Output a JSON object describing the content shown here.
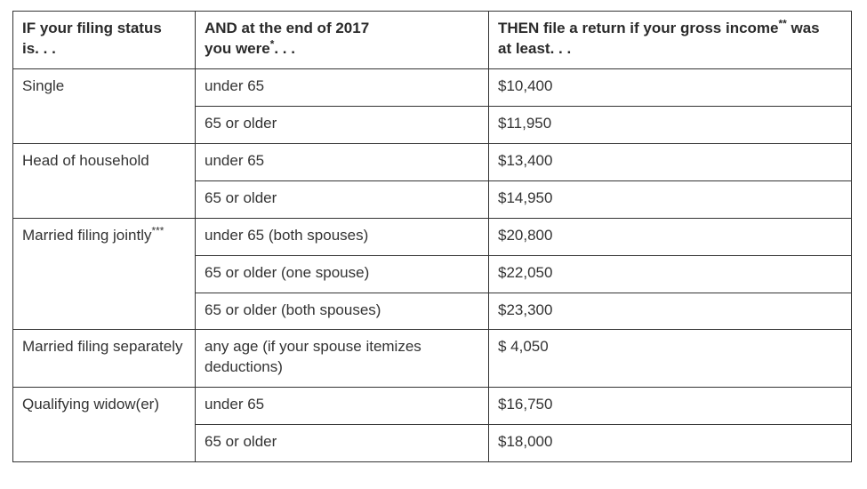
{
  "table": {
    "headers": {
      "status_a": "IF your filing status",
      "status_b": "is. . .",
      "age_a": "AND at the end of 2017",
      "age_b": "you were",
      "age_sup": "*",
      "age_c": ". . .",
      "income_a": "THEN file a return if your gross income",
      "income_sup": "**",
      "income_b": " was",
      "income_c": "at least. . ."
    },
    "groups": [
      {
        "status": "Single",
        "status_sup": "",
        "rows": [
          {
            "age": "under 65",
            "income": "$10,400"
          },
          {
            "age": "65 or older",
            "income": "$11,950"
          }
        ]
      },
      {
        "status": "Head of household",
        "status_sup": "",
        "rows": [
          {
            "age": "under 65",
            "income": "$13,400"
          },
          {
            "age": "65 or older",
            "income": "$14,950"
          }
        ]
      },
      {
        "status": "Married filing jointly",
        "status_sup": "***",
        "rows": [
          {
            "age": "under 65 (both spouses)",
            "income": "$20,800"
          },
          {
            "age": "65 or older (one spouse)",
            "income": "$22,050"
          },
          {
            "age": "65 or older (both spouses)",
            "income": "$23,300"
          }
        ]
      },
      {
        "status": "Married filing separately",
        "status_sup": "",
        "rows": [
          {
            "age": "any age (if your spouse itemizes deductions)",
            "income": "$ 4,050"
          }
        ]
      },
      {
        "status": "Qualifying widow(er)",
        "status_sup": "",
        "rows": [
          {
            "age": "under 65",
            "income": "$16,750"
          },
          {
            "age": "65 or older",
            "income": "$18,000"
          }
        ]
      }
    ]
  }
}
